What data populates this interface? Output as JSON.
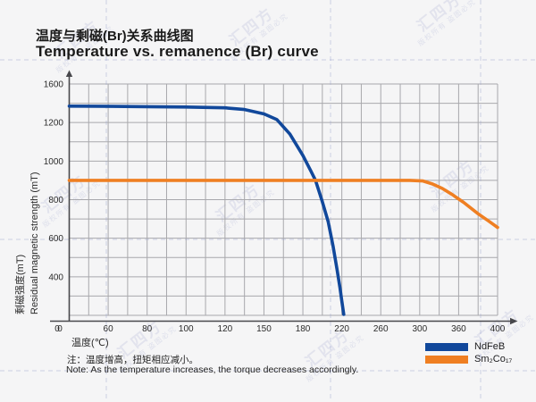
{
  "title": {
    "zh": "温度与剩磁(Br)关系曲线图",
    "en": "Temperature vs. remanence (Br) curve"
  },
  "chart_data": {
    "type": "line",
    "title_zh": "温度与剩磁(Br)关系曲线图",
    "title_en": "Temperature vs. remanence (Br) curve",
    "xlabel": "温度(℃)",
    "ylabel_zh": "剩磁强度(mT)",
    "ylabel_en": "Residual magnetic strength (mT)",
    "origin_label": "0",
    "grid": true,
    "legend_position": "bottom-right",
    "x_ticks": {
      "labels": [
        "0",
        "60",
        "80",
        "100",
        "120",
        "150",
        "180",
        "220",
        "260",
        "300",
        "360",
        "400"
      ],
      "values": [
        0,
        60,
        80,
        100,
        120,
        150,
        180,
        220,
        260,
        300,
        360,
        400
      ]
    },
    "y_ticks": {
      "labels": [
        "1600",
        "1200",
        "1000",
        "800",
        "600",
        "400"
      ],
      "values": [
        1600,
        1200,
        1000,
        800,
        600,
        400,
        0
      ]
    },
    "series": [
      {
        "name": "NdFeB",
        "color": "#11489b",
        "points": [
          [
            0,
            1370
          ],
          [
            40,
            1369
          ],
          [
            80,
            1365
          ],
          [
            100,
            1361
          ],
          [
            120,
            1353
          ],
          [
            135,
            1335
          ],
          [
            150,
            1290
          ],
          [
            160,
            1230
          ],
          [
            170,
            1140
          ],
          [
            180,
            1030
          ],
          [
            188,
            950
          ],
          [
            193,
            900
          ],
          [
            200,
            790
          ],
          [
            206,
            685
          ],
          [
            211,
            560
          ],
          [
            215,
            440
          ],
          [
            218,
            290
          ],
          [
            220,
            150
          ],
          [
            222,
            10
          ]
        ]
      },
      {
        "name": "Sm₂Co₁₇",
        "color": "#ef7f22",
        "points": [
          [
            0,
            900
          ],
          [
            60,
            900
          ],
          [
            120,
            900
          ],
          [
            180,
            900
          ],
          [
            240,
            900
          ],
          [
            290,
            900
          ],
          [
            305,
            897
          ],
          [
            320,
            881
          ],
          [
            335,
            858
          ],
          [
            350,
            827
          ],
          [
            365,
            786
          ],
          [
            380,
            727
          ],
          [
            390,
            692
          ],
          [
            400,
            656
          ]
        ]
      }
    ]
  },
  "legend": [
    {
      "label": "NdFeB",
      "color": "#11489b"
    },
    {
      "label": "Sm₂Co₁₇",
      "color": "#ef7f22"
    }
  ],
  "notes": {
    "zh": "注：温度增高，扭矩相应减小。",
    "en": "Note: As the temperature increases, the torque decreases accordingly."
  },
  "watermark": {
    "logo": "汇四方",
    "notice": "版权所有 盗图必究"
  }
}
